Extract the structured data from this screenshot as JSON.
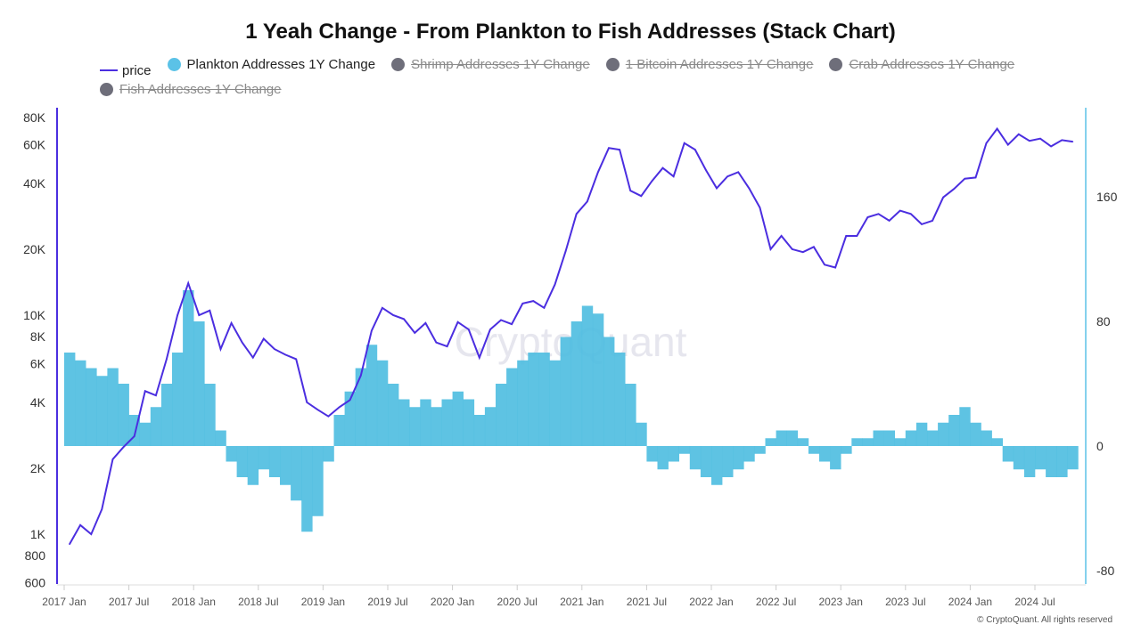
{
  "chart_data": {
    "type": "bar+line",
    "title": "1 Yeah Change - From Plankton to Fish Addresses (Stack Chart)",
    "legend": [
      {
        "name": "price",
        "color": "#4b2ee0",
        "marker": "line",
        "enabled": true
      },
      {
        "name": "Plankton Addresses 1Y Change",
        "color": "#5bc2e7",
        "marker": "dot",
        "enabled": true
      },
      {
        "name": "Shrimp Addresses 1Y Change",
        "color": "#6e6e7a",
        "marker": "dot",
        "enabled": false
      },
      {
        "name": "1 Bitcoin Addresses 1Y Change",
        "color": "#6e6e7a",
        "marker": "dot",
        "enabled": false
      },
      {
        "name": "Crab Addresses 1Y Change",
        "color": "#6e6e7a",
        "marker": "dot",
        "enabled": false
      },
      {
        "name": "Fish Addresses 1Y Change",
        "color": "#6e6e7a",
        "marker": "dot",
        "enabled": false
      }
    ],
    "legend_position": "top",
    "x_ticks": [
      "2017 Jan",
      "2017 Jul",
      "2018 Jan",
      "2018 Jul",
      "2019 Jan",
      "2019 Jul",
      "2020 Jan",
      "2020 Jul",
      "2021 Jan",
      "2021 Jul",
      "2022 Jan",
      "2022 Jul",
      "2023 Jan",
      "2023 Jul",
      "2024 Jan",
      "2024 Jul"
    ],
    "left_axis": {
      "scale": "log",
      "range": [
        600,
        80000
      ],
      "ticks": [
        "80K",
        "60K",
        "40K",
        "20K",
        "10K",
        "8K",
        "6K",
        "4K",
        "2K",
        "1K",
        "800",
        "600"
      ],
      "tick_values": [
        80000,
        60000,
        40000,
        20000,
        10000,
        8000,
        6000,
        4000,
        2000,
        1000,
        800,
        600
      ],
      "color": "#4b2ee0"
    },
    "right_axis": {
      "scale": "linear",
      "range": [
        -80,
        190
      ],
      "ticks": [
        "160",
        "80",
        "0",
        "-80"
      ],
      "tick_values": [
        160,
        80,
        0,
        -80
      ],
      "color": "#5bc2e7"
    },
    "start_month": "2017 Jan",
    "series": [
      {
        "name": "price",
        "axis": "left",
        "values": [
          900,
          1100,
          1000,
          1300,
          2200,
          2500,
          2800,
          4500,
          4300,
          6300,
          10000,
          14000,
          10000,
          10500,
          7000,
          9200,
          7500,
          6400,
          7800,
          7000,
          6600,
          6300,
          4000,
          3700,
          3450,
          3800,
          4100,
          5300,
          8500,
          10800,
          10000,
          9600,
          8300,
          9200,
          7500,
          7200,
          9300,
          8600,
          6400,
          8600,
          9500,
          9100,
          11300,
          11600,
          10800,
          13800,
          19600,
          29000,
          33000,
          45000,
          58000,
          57000,
          37000,
          35000,
          41000,
          47000,
          43000,
          61000,
          57000,
          46000,
          38000,
          43000,
          45000,
          38000,
          31000,
          20000,
          23000,
          20000,
          19400,
          20500,
          17000,
          16500,
          23000,
          23000,
          28000,
          29000,
          27000,
          30000,
          29000,
          26000,
          27000,
          34500,
          37700,
          42000,
          42500,
          61000,
          71000,
          60000,
          67000,
          62500,
          64000,
          59000,
          63000,
          62000
        ]
      },
      {
        "name": "Plankton Addresses 1Y Change",
        "axis": "right",
        "values": [
          60,
          55,
          50,
          45,
          50,
          40,
          20,
          15,
          25,
          40,
          60,
          100,
          80,
          40,
          10,
          -10,
          -20,
          -25,
          -15,
          -20,
          -25,
          -35,
          -55,
          -45,
          -10,
          20,
          35,
          50,
          65,
          55,
          40,
          30,
          25,
          30,
          25,
          30,
          35,
          30,
          20,
          25,
          40,
          50,
          55,
          60,
          60,
          55,
          70,
          80,
          90,
          85,
          70,
          60,
          40,
          15,
          -10,
          -15,
          -10,
          -5,
          -15,
          -20,
          -25,
          -20,
          -15,
          -10,
          -5,
          5,
          10,
          10,
          5,
          -5,
          -10,
          -15,
          -5,
          5,
          5,
          10,
          10,
          5,
          10,
          15,
          10,
          15,
          20,
          25,
          15,
          10,
          5,
          -10,
          -15,
          -20,
          -15,
          -20,
          -20,
          -15
        ]
      }
    ],
    "watermark": "CryptoQuant"
  },
  "footer": "© CryptoQuant. All rights reserved"
}
